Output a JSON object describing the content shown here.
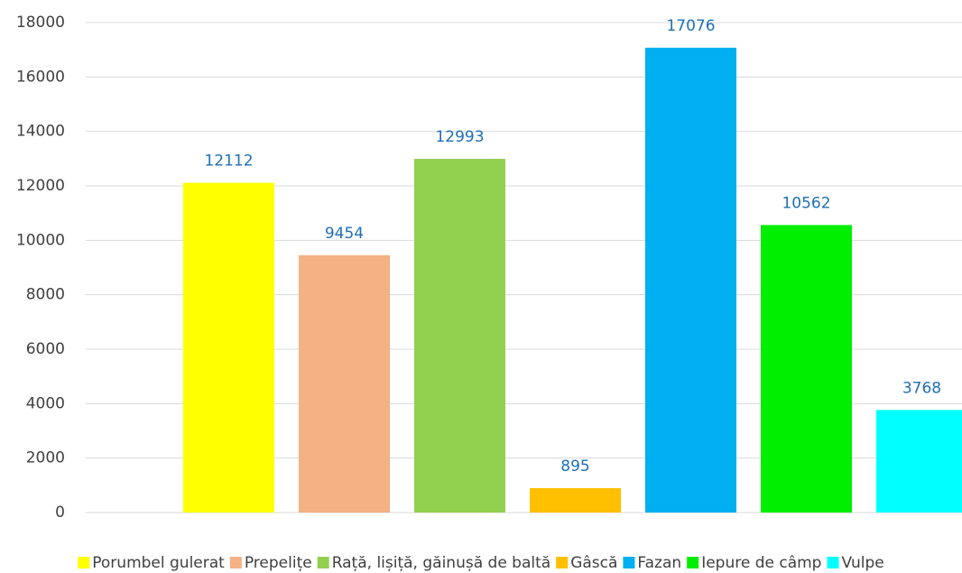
{
  "chart_data": {
    "type": "bar",
    "series": [
      {
        "name": "Porumbel gulerat",
        "color": "#ffff00",
        "values": [
          12112
        ]
      },
      {
        "name": "Prepelițe",
        "color": "#f4b183",
        "values": [
          9454
        ]
      },
      {
        "name": "Rață, lișiță, găinușă de baltă",
        "color": "#92d050",
        "values": [
          12993
        ]
      },
      {
        "name": "Gâscă",
        "color": "#ffc000",
        "values": [
          895
        ]
      },
      {
        "name": "Fazan",
        "color": "#00b0f0",
        "values": [
          17076
        ]
      },
      {
        "name": "Iepure de câmp",
        "color": "#00ee00",
        "values": [
          10562
        ]
      },
      {
        "name": "Vulpe",
        "color": "#00ffff",
        "values": [
          3768
        ]
      }
    ],
    "ylim": [
      0,
      18000
    ],
    "yticks": [
      0,
      2000,
      4000,
      6000,
      8000,
      10000,
      12000,
      14000,
      16000,
      18000
    ],
    "grid": true,
    "legend": "bottom"
  }
}
